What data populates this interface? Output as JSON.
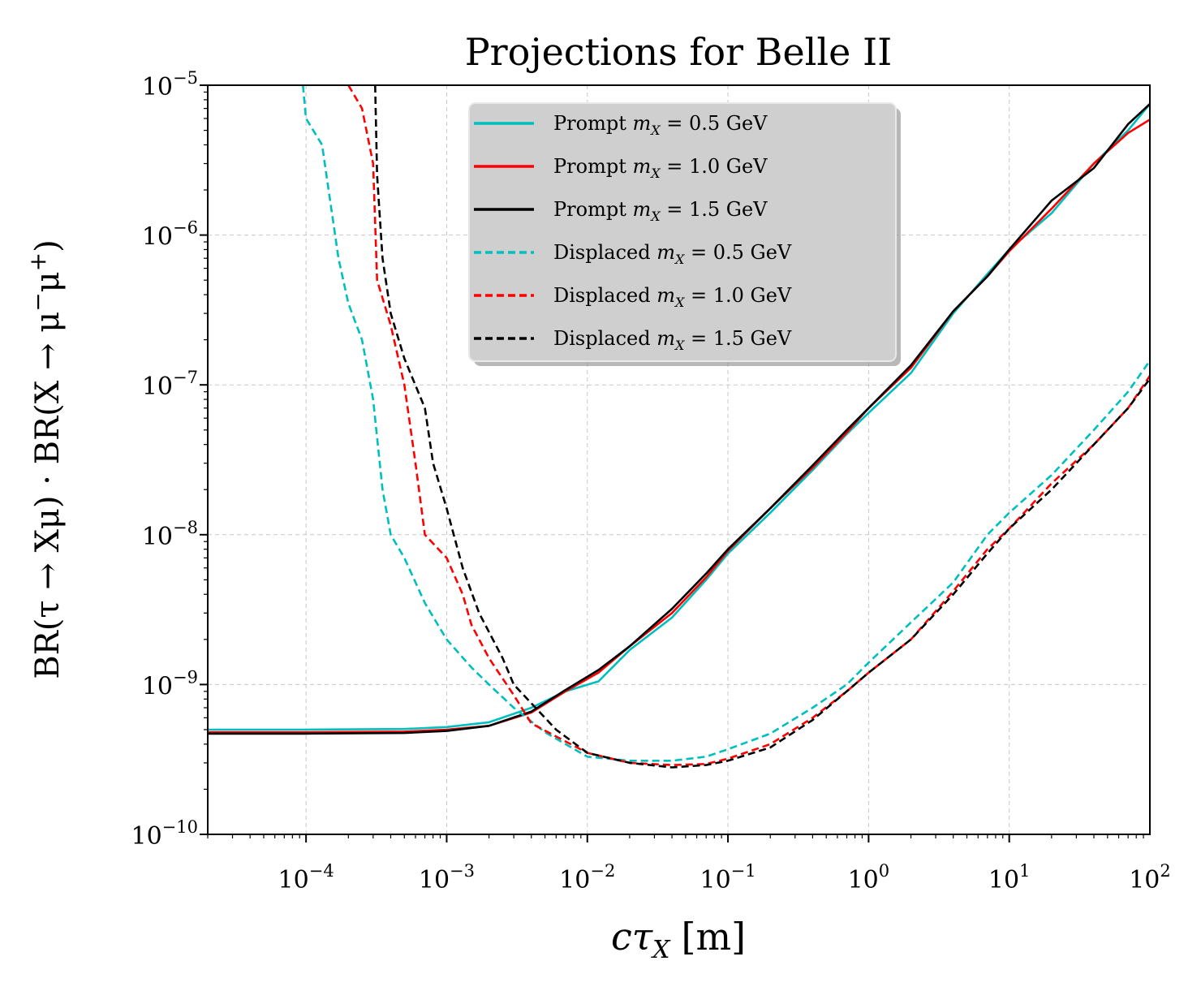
{
  "chart_data": {
    "type": "line",
    "title": "Projections for Belle II",
    "xlabel": "cτ_X [m]",
    "ylabel": "BR(τ → Xμ) · BR(X → μ⁻μ⁺)",
    "xscale": "log",
    "yscale": "log",
    "xlim": [
      2e-05,
      100
    ],
    "ylim": [
      1e-10,
      1e-05
    ],
    "grid": true,
    "legend_position": "top-center",
    "xticks": [
      {
        "value": 0.0001,
        "base": "10",
        "exp": "−4"
      },
      {
        "value": 0.001,
        "base": "10",
        "exp": "−3"
      },
      {
        "value": 0.01,
        "base": "10",
        "exp": "−2"
      },
      {
        "value": 0.1,
        "base": "10",
        "exp": "−1"
      },
      {
        "value": 1,
        "base": "10",
        "exp": "0"
      },
      {
        "value": 10,
        "base": "10",
        "exp": "1"
      },
      {
        "value": 100,
        "base": "10",
        "exp": "2"
      }
    ],
    "yticks": [
      {
        "value": 1e-10,
        "base": "10",
        "exp": "−10"
      },
      {
        "value": 1e-09,
        "base": "10",
        "exp": "−9"
      },
      {
        "value": 1e-08,
        "base": "10",
        "exp": "−8"
      },
      {
        "value": 1e-07,
        "base": "10",
        "exp": "−7"
      },
      {
        "value": 1e-06,
        "base": "10",
        "exp": "−6"
      },
      {
        "value": 1e-05,
        "base": "10",
        "exp": "−5"
      }
    ],
    "series": [
      {
        "name": "Prompt m_X = 0.5 GeV",
        "label": "Prompt",
        "mass": "0.5",
        "color": "#00bfbf",
        "dash": false,
        "points": [
          [
            2e-05,
            5e-10
          ],
          [
            0.0001,
            5e-10
          ],
          [
            0.0005,
            5.05e-10
          ],
          [
            0.001,
            5.2e-10
          ],
          [
            0.002,
            5.6e-10
          ],
          [
            0.004,
            7e-10
          ],
          [
            0.007,
            9e-10
          ],
          [
            0.012,
            1.05e-09
          ],
          [
            0.02,
            1.7e-09
          ],
          [
            0.04,
            2.8e-09
          ],
          [
            0.07,
            5e-09
          ],
          [
            0.1,
            7.5e-09
          ],
          [
            0.2,
            1.4e-08
          ],
          [
            0.4,
            2.7e-08
          ],
          [
            0.7,
            4.7e-08
          ],
          [
            1,
            6.5e-08
          ],
          [
            2,
            1.2e-07
          ],
          [
            4,
            3e-07
          ],
          [
            7,
            5.5e-07
          ],
          [
            10,
            8e-07
          ],
          [
            20,
            1.4e-06
          ],
          [
            40,
            3e-06
          ],
          [
            70,
            5e-06
          ],
          [
            100,
            7.5e-06
          ]
        ]
      },
      {
        "name": "Prompt m_X = 1.0 GeV",
        "label": "Prompt",
        "mass": "1.0",
        "color": "#ff0000",
        "dash": false,
        "points": [
          [
            2e-05,
            4.8e-10
          ],
          [
            0.0001,
            4.8e-10
          ],
          [
            0.0005,
            4.85e-10
          ],
          [
            0.001,
            5e-10
          ],
          [
            0.002,
            5.3e-10
          ],
          [
            0.004,
            6.5e-10
          ],
          [
            0.007,
            9e-10
          ],
          [
            0.012,
            1.2e-09
          ],
          [
            0.02,
            1.8e-09
          ],
          [
            0.04,
            3e-09
          ],
          [
            0.07,
            5.2e-09
          ],
          [
            0.1,
            7.8e-09
          ],
          [
            0.2,
            1.5e-08
          ],
          [
            0.4,
            2.8e-08
          ],
          [
            0.7,
            4.8e-08
          ],
          [
            1,
            7e-08
          ],
          [
            2,
            1.3e-07
          ],
          [
            4,
            3.1e-07
          ],
          [
            7,
            5.3e-07
          ],
          [
            10,
            7.8e-07
          ],
          [
            20,
            1.5e-06
          ],
          [
            40,
            3e-06
          ],
          [
            70,
            4.8e-06
          ],
          [
            100,
            5.9e-06
          ]
        ]
      },
      {
        "name": "Prompt m_X = 1.5 GeV",
        "label": "Prompt",
        "mass": "1.5",
        "color": "#000000",
        "dash": false,
        "points": [
          [
            2e-05,
            4.7e-10
          ],
          [
            0.0001,
            4.7e-10
          ],
          [
            0.0005,
            4.75e-10
          ],
          [
            0.001,
            4.9e-10
          ],
          [
            0.002,
            5.3e-10
          ],
          [
            0.004,
            6.6e-10
          ],
          [
            0.007,
            9.2e-10
          ],
          [
            0.012,
            1.25e-09
          ],
          [
            0.02,
            1.8e-09
          ],
          [
            0.04,
            3.2e-09
          ],
          [
            0.07,
            5.5e-09
          ],
          [
            0.1,
            8e-09
          ],
          [
            0.2,
            1.5e-08
          ],
          [
            0.4,
            2.9e-08
          ],
          [
            0.7,
            5e-08
          ],
          [
            1,
            7e-08
          ],
          [
            2,
            1.35e-07
          ],
          [
            4,
            3.1e-07
          ],
          [
            7,
            5.3e-07
          ],
          [
            10,
            8e-07
          ],
          [
            20,
            1.7e-06
          ],
          [
            40,
            2.8e-06
          ],
          [
            70,
            5.5e-06
          ],
          [
            100,
            7.5e-06
          ]
        ]
      },
      {
        "name": "Displaced m_X = 0.5 GeV",
        "label": "Displaced",
        "mass": "0.5",
        "color": "#00bfbf",
        "dash": true,
        "points": [
          [
            9.5e-05,
            1e-05
          ],
          [
            0.0001,
            6e-06
          ],
          [
            0.00013,
            4e-06
          ],
          [
            0.00017,
            7e-07
          ],
          [
            0.0002,
            3.5e-07
          ],
          [
            0.00025,
            2e-07
          ],
          [
            0.0003,
            8e-08
          ],
          [
            0.00035,
            2e-08
          ],
          [
            0.0004,
            1e-08
          ],
          [
            0.0005,
            7e-09
          ],
          [
            0.0007,
            3.5e-09
          ],
          [
            0.001,
            2e-09
          ],
          [
            0.0015,
            1.3e-09
          ],
          [
            0.002,
            1e-09
          ],
          [
            0.003,
            7e-10
          ],
          [
            0.005,
            4.8e-10
          ],
          [
            0.01,
            3.3e-10
          ],
          [
            0.02,
            3.1e-10
          ],
          [
            0.04,
            3.1e-10
          ],
          [
            0.07,
            3.3e-10
          ],
          [
            0.1,
            3.7e-10
          ],
          [
            0.2,
            4.7e-10
          ],
          [
            0.4,
            7e-10
          ],
          [
            0.7,
            1e-09
          ],
          [
            1,
            1.4e-09
          ],
          [
            2,
            2.6e-09
          ],
          [
            4,
            4.8e-09
          ],
          [
            7,
            1e-08
          ],
          [
            10,
            1.4e-08
          ],
          [
            20,
            2.5e-08
          ],
          [
            40,
            5e-08
          ],
          [
            70,
            9e-08
          ],
          [
            100,
            1.45e-07
          ]
        ]
      },
      {
        "name": "Displaced m_X = 1.0 GeV",
        "label": "Displaced",
        "mass": "1.0",
        "color": "#ff0000",
        "dash": true,
        "points": [
          [
            0.0002,
            1e-05
          ],
          [
            0.00025,
            7e-06
          ],
          [
            0.0003,
            3e-06
          ],
          [
            0.00032,
            5e-07
          ],
          [
            0.0004,
            2.5e-07
          ],
          [
            0.0005,
            1e-07
          ],
          [
            0.0006,
            3e-08
          ],
          [
            0.0007,
            1e-08
          ],
          [
            0.001,
            7e-09
          ],
          [
            0.0013,
            4e-09
          ],
          [
            0.0015,
            2.5e-09
          ],
          [
            0.002,
            1.5e-09
          ],
          [
            0.003,
            8.5e-10
          ],
          [
            0.004,
            5.5e-10
          ],
          [
            0.006,
            4.5e-10
          ],
          [
            0.01,
            3.5e-10
          ],
          [
            0.02,
            3e-10
          ],
          [
            0.04,
            2.9e-10
          ],
          [
            0.07,
            2.95e-10
          ],
          [
            0.1,
            3.2e-10
          ],
          [
            0.2,
            4e-10
          ],
          [
            0.4,
            6e-10
          ],
          [
            0.7,
            9e-10
          ],
          [
            1,
            1.2e-09
          ],
          [
            2,
            2e-09
          ],
          [
            4,
            4.2e-09
          ],
          [
            7,
            8e-09
          ],
          [
            10,
            1.1e-08
          ],
          [
            20,
            2.2e-08
          ],
          [
            40,
            4e-08
          ],
          [
            70,
            7e-08
          ],
          [
            100,
            1.15e-07
          ]
        ]
      },
      {
        "name": "Displaced m_X = 1.5 GeV",
        "label": "Displaced",
        "mass": "1.5",
        "color": "#000000",
        "dash": true,
        "points": [
          [
            0.00031,
            1e-05
          ],
          [
            0.00032,
            2.5e-06
          ],
          [
            0.00035,
            7e-07
          ],
          [
            0.0004,
            3e-07
          ],
          [
            0.0005,
            1.5e-07
          ],
          [
            0.0007,
            7e-08
          ],
          [
            0.0008,
            3e-08
          ],
          [
            0.001,
            1.5e-08
          ],
          [
            0.0013,
            6e-09
          ],
          [
            0.0017,
            3e-09
          ],
          [
            0.0025,
            1.5e-09
          ],
          [
            0.003,
            1e-09
          ],
          [
            0.004,
            7.5e-10
          ],
          [
            0.006,
            5e-10
          ],
          [
            0.01,
            3.5e-10
          ],
          [
            0.02,
            3e-10
          ],
          [
            0.04,
            2.8e-10
          ],
          [
            0.07,
            2.9e-10
          ],
          [
            0.1,
            3.1e-10
          ],
          [
            0.2,
            3.8e-10
          ],
          [
            0.4,
            5.8e-10
          ],
          [
            0.7,
            9e-10
          ],
          [
            1,
            1.2e-09
          ],
          [
            2,
            2e-09
          ],
          [
            4,
            4e-09
          ],
          [
            7,
            7.5e-09
          ],
          [
            10,
            1.1e-08
          ],
          [
            20,
            2e-08
          ],
          [
            40,
            4e-08
          ],
          [
            70,
            7e-08
          ],
          [
            100,
            1.1e-07
          ]
        ]
      }
    ]
  },
  "legend_math": {
    "symbol": "m",
    "subscript": "X",
    "eq": "=",
    "unit": "GeV"
  },
  "axis_text": {
    "xlabel_main": "cτ",
    "xlabel_sub": "X",
    "xlabel_unit": "[m]",
    "ylabel_text": "BR(τ → Xμ) · BR(X → μ",
    "ylabel_sup1": "−",
    "ylabel_mid": "μ",
    "ylabel_sup2": "+",
    "ylabel_end": ")"
  }
}
